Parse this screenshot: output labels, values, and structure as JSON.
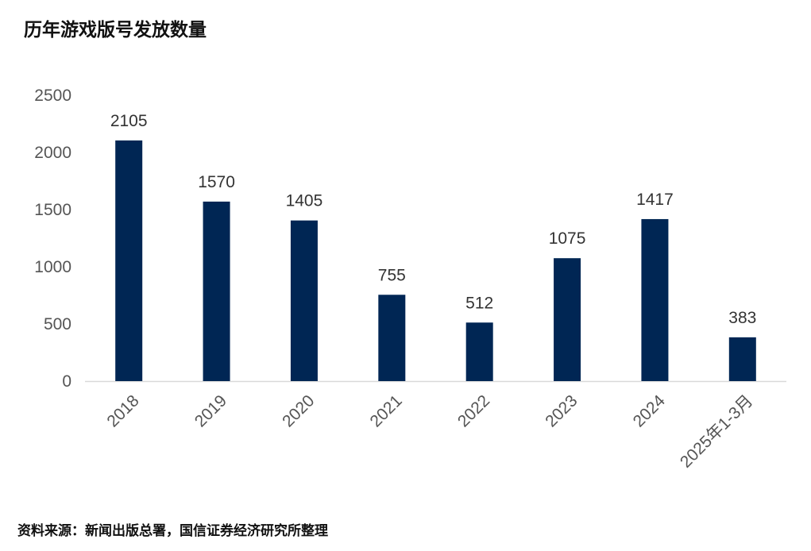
{
  "title": "历年游戏版号发放数量",
  "source": "资料来源：新闻出版总署，国信证券经济研究所整理",
  "colors": {
    "bar": "#002654",
    "axis": "#d9d9d9"
  },
  "chart_data": {
    "type": "bar",
    "categories": [
      "2018",
      "2019",
      "2020",
      "2021",
      "2022",
      "2023",
      "2024",
      "2025年1-3月"
    ],
    "values": [
      2105,
      1570,
      1405,
      755,
      512,
      1075,
      1417,
      383
    ],
    "ylim": [
      0,
      2500
    ],
    "yticks": [
      "0",
      "500",
      "1000",
      "1500",
      "2000",
      "2500"
    ],
    "xlabel": "",
    "ylabel": "",
    "grid": false,
    "legend": "none"
  }
}
